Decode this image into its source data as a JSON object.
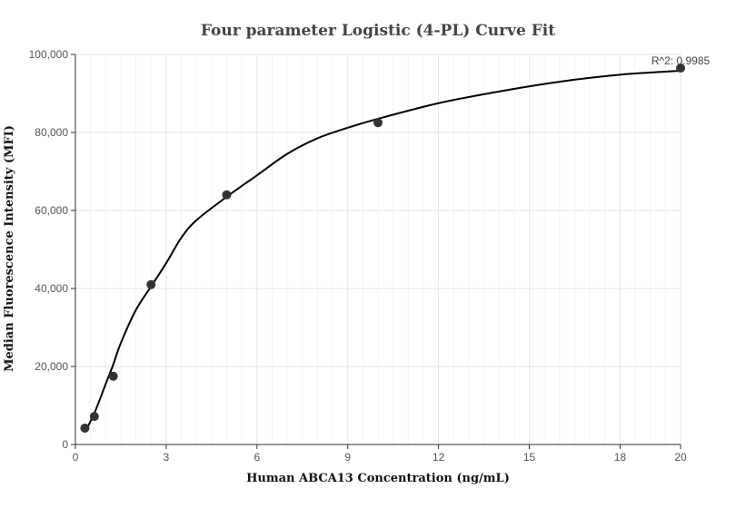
{
  "chart_data": {
    "type": "scatter",
    "title": "Four parameter Logistic (4-PL) Curve Fit",
    "xlabel": "Human ABCA13 Concentration (ng/mL)",
    "ylabel": "Median Fluorescence Intensity (MFI)",
    "xlim": [
      0,
      20
    ],
    "ylim": [
      0,
      100000
    ],
    "x_ticks": [
      0,
      3,
      6,
      9,
      12,
      15,
      18,
      20
    ],
    "x_tick_labels": [
      "0",
      "3",
      "6",
      "9",
      "12",
      "15",
      "18",
      "20"
    ],
    "y_ticks": [
      0,
      20000,
      40000,
      60000,
      80000,
      100000
    ],
    "y_tick_labels": [
      "0",
      "20,000",
      "40,000",
      "60,000",
      "80,000",
      "100,000"
    ],
    "grid": true,
    "annotation": "R^2: 0.9985",
    "points": [
      {
        "x": 0.3125,
        "y": 4200
      },
      {
        "x": 0.625,
        "y": 7200
      },
      {
        "x": 1.25,
        "y": 17500
      },
      {
        "x": 2.5,
        "y": 41000
      },
      {
        "x": 5,
        "y": 64000
      },
      {
        "x": 10,
        "y": 82500
      },
      {
        "x": 20,
        "y": 96500
      }
    ],
    "fit_curve": [
      {
        "x": 0.3125,
        "y": 3200
      },
      {
        "x": 0.625,
        "y": 8000
      },
      {
        "x": 1,
        "y": 15500
      },
      {
        "x": 1.25,
        "y": 20500
      },
      {
        "x": 1.5,
        "y": 26000
      },
      {
        "x": 2,
        "y": 34500
      },
      {
        "x": 2.5,
        "y": 40500
      },
      {
        "x": 3,
        "y": 46500
      },
      {
        "x": 3.5,
        "y": 53000
      },
      {
        "x": 4,
        "y": 57500
      },
      {
        "x": 5,
        "y": 63500
      },
      {
        "x": 6,
        "y": 69000
      },
      {
        "x": 7,
        "y": 74500
      },
      {
        "x": 8,
        "y": 78500
      },
      {
        "x": 9,
        "y": 81200
      },
      {
        "x": 10,
        "y": 83500
      },
      {
        "x": 12,
        "y": 87500
      },
      {
        "x": 14,
        "y": 90500
      },
      {
        "x": 16,
        "y": 93000
      },
      {
        "x": 18,
        "y": 94800
      },
      {
        "x": 20,
        "y": 95800
      }
    ],
    "colors": {
      "marker": "#333333",
      "curve": "#000000",
      "grid": "#e6e6e6",
      "minor_grid": "#f3f3f3",
      "axis": "#333333"
    }
  }
}
